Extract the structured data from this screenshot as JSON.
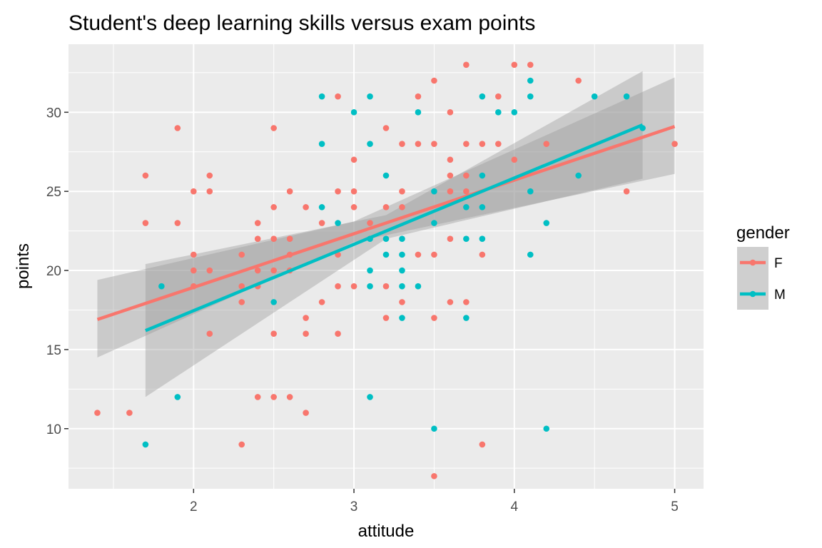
{
  "chart_data": {
    "type": "scatter",
    "title": "Student's deep learning skills versus exam points",
    "xlabel": "attitude",
    "ylabel": "points",
    "xlim": [
      1.22,
      5.18
    ],
    "ylim": [
      6.2,
      34.3
    ],
    "xticks": [
      2,
      3,
      4,
      5
    ],
    "yticks": [
      10,
      15,
      20,
      25,
      30
    ],
    "grid": true,
    "legend": {
      "title": "gender",
      "placement": "right"
    },
    "series": [
      {
        "name": "F",
        "color": "#F8766D",
        "points": [
          [
            1.4,
            11
          ],
          [
            1.6,
            11
          ],
          [
            1.7,
            26
          ],
          [
            1.7,
            23
          ],
          [
            1.9,
            29
          ],
          [
            1.9,
            23
          ],
          [
            2.0,
            25
          ],
          [
            2.0,
            21
          ],
          [
            2.0,
            20
          ],
          [
            2.0,
            19
          ],
          [
            2.1,
            26
          ],
          [
            2.1,
            25
          ],
          [
            2.1,
            20
          ],
          [
            2.1,
            16
          ],
          [
            2.3,
            21
          ],
          [
            2.3,
            19
          ],
          [
            2.3,
            18
          ],
          [
            2.3,
            9
          ],
          [
            2.4,
            23
          ],
          [
            2.4,
            22
          ],
          [
            2.4,
            20
          ],
          [
            2.4,
            19
          ],
          [
            2.4,
            12
          ],
          [
            2.5,
            29
          ],
          [
            2.5,
            24
          ],
          [
            2.5,
            22
          ],
          [
            2.5,
            20
          ],
          [
            2.5,
            16
          ],
          [
            2.5,
            12
          ],
          [
            2.6,
            25
          ],
          [
            2.6,
            22
          ],
          [
            2.6,
            21
          ],
          [
            2.6,
            20
          ],
          [
            2.6,
            12
          ],
          [
            2.7,
            24
          ],
          [
            2.7,
            17
          ],
          [
            2.7,
            16
          ],
          [
            2.7,
            11
          ],
          [
            2.8,
            23
          ],
          [
            2.8,
            18
          ],
          [
            2.9,
            31
          ],
          [
            2.9,
            25
          ],
          [
            2.9,
            21
          ],
          [
            2.9,
            19
          ],
          [
            2.9,
            16
          ],
          [
            3.0,
            27
          ],
          [
            3.0,
            25
          ],
          [
            3.0,
            24
          ],
          [
            3.0,
            19
          ],
          [
            3.1,
            23
          ],
          [
            3.2,
            29
          ],
          [
            3.2,
            24
          ],
          [
            3.2,
            19
          ],
          [
            3.2,
            17
          ],
          [
            3.3,
            28
          ],
          [
            3.3,
            25
          ],
          [
            3.3,
            24
          ],
          [
            3.3,
            18
          ],
          [
            3.4,
            31
          ],
          [
            3.4,
            28
          ],
          [
            3.4,
            21
          ],
          [
            3.5,
            32
          ],
          [
            3.5,
            28
          ],
          [
            3.5,
            21
          ],
          [
            3.5,
            17
          ],
          [
            3.5,
            7
          ],
          [
            3.6,
            30
          ],
          [
            3.6,
            27
          ],
          [
            3.6,
            26
          ],
          [
            3.6,
            25
          ],
          [
            3.6,
            22
          ],
          [
            3.6,
            18
          ],
          [
            3.7,
            33
          ],
          [
            3.7,
            28
          ],
          [
            3.7,
            26
          ],
          [
            3.7,
            25
          ],
          [
            3.7,
            18
          ],
          [
            3.8,
            28
          ],
          [
            3.8,
            21
          ],
          [
            3.8,
            9
          ],
          [
            3.9,
            31
          ],
          [
            3.9,
            28
          ],
          [
            4.0,
            33
          ],
          [
            4.0,
            27
          ],
          [
            4.1,
            33
          ],
          [
            4.2,
            28
          ],
          [
            4.4,
            32
          ],
          [
            4.7,
            25
          ],
          [
            5.0,
            28
          ]
        ],
        "fit": {
          "x": [
            1.4,
            5.0
          ],
          "y": [
            16.9,
            29.1
          ]
        },
        "band": {
          "x": [
            1.4,
            3.0,
            5.0
          ],
          "lower": [
            14.5,
            21.8,
            26.1
          ],
          "upper": [
            19.4,
            23.1,
            32.2
          ]
        }
      },
      {
        "name": "M",
        "color": "#00BFC4",
        "points": [
          [
            1.7,
            9
          ],
          [
            1.8,
            19
          ],
          [
            1.9,
            12
          ],
          [
            2.5,
            18
          ],
          [
            2.8,
            31
          ],
          [
            2.8,
            28
          ],
          [
            2.8,
            24
          ],
          [
            2.9,
            23
          ],
          [
            3.0,
            30
          ],
          [
            3.1,
            31
          ],
          [
            3.1,
            28
          ],
          [
            3.1,
            22
          ],
          [
            3.1,
            20
          ],
          [
            3.1,
            19
          ],
          [
            3.1,
            12
          ],
          [
            3.2,
            26
          ],
          [
            3.2,
            22
          ],
          [
            3.2,
            21
          ],
          [
            3.3,
            22
          ],
          [
            3.3,
            21
          ],
          [
            3.3,
            20
          ],
          [
            3.3,
            19
          ],
          [
            3.3,
            17
          ],
          [
            3.4,
            30
          ],
          [
            3.4,
            19
          ],
          [
            3.5,
            25
          ],
          [
            3.5,
            23
          ],
          [
            3.5,
            10
          ],
          [
            3.7,
            24
          ],
          [
            3.7,
            22
          ],
          [
            3.7,
            17
          ],
          [
            3.8,
            31
          ],
          [
            3.8,
            26
          ],
          [
            3.8,
            24
          ],
          [
            3.8,
            22
          ],
          [
            3.9,
            30
          ],
          [
            4.0,
            30
          ],
          [
            4.1,
            32
          ],
          [
            4.1,
            31
          ],
          [
            4.1,
            25
          ],
          [
            4.1,
            21
          ],
          [
            4.2,
            23
          ],
          [
            4.2,
            10
          ],
          [
            4.4,
            26
          ],
          [
            4.5,
            31
          ],
          [
            4.7,
            31
          ],
          [
            4.8,
            29
          ]
        ],
        "fit": {
          "x": [
            1.7,
            4.8
          ],
          "y": [
            16.2,
            29.2
          ]
        },
        "band": {
          "x": [
            1.7,
            3.2,
            4.8
          ],
          "lower": [
            12.0,
            22.0,
            25.8
          ],
          "upper": [
            20.4,
            23.5,
            32.6
          ]
        }
      }
    ]
  }
}
